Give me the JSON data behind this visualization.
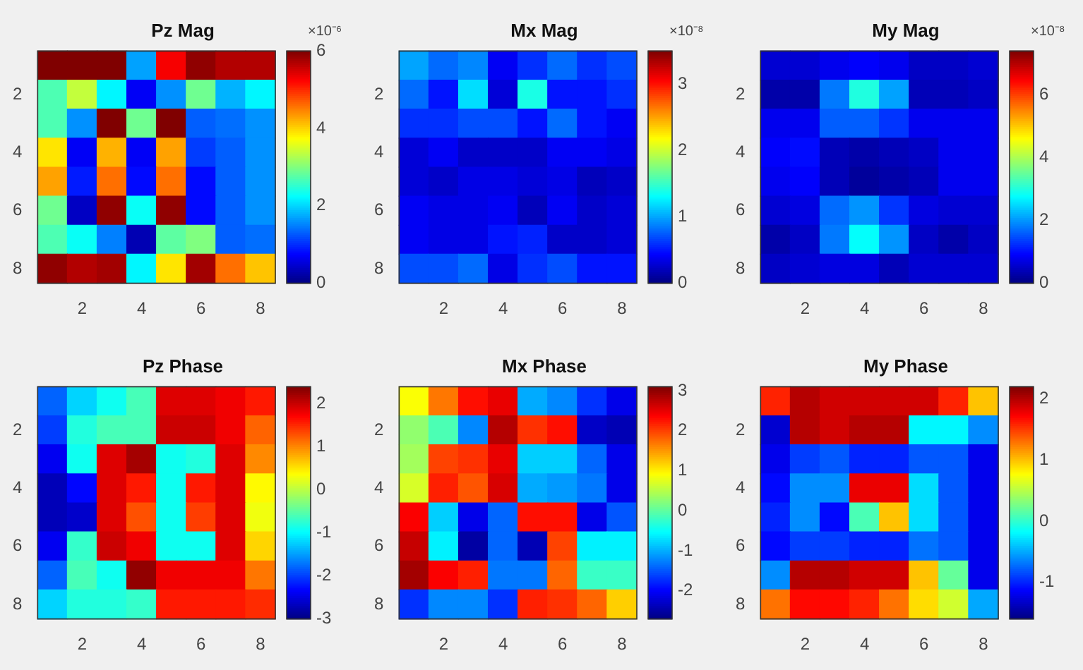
{
  "chart_data": [
    {
      "type": "heatmap",
      "title": "Pz Mag",
      "categories": [
        null,
        "2",
        null,
        "4",
        null,
        "6",
        null,
        "8"
      ],
      "y_categories": [
        null,
        "2",
        null,
        "4",
        null,
        "6",
        null,
        "8"
      ],
      "clim": [
        0,
        6
      ],
      "cticks": [
        0,
        2,
        4,
        6
      ],
      "clabel": "×10⁻⁶",
      "cells": [
        [
          6,
          6,
          6,
          1.7,
          5.3,
          5.9,
          5.7,
          5.7
        ],
        [
          2.7,
          3.4,
          2.2,
          0.7,
          1.6,
          2.9,
          1.8,
          2.2
        ],
        [
          2.7,
          1.6,
          6,
          2.9,
          6,
          1.3,
          1.4,
          1.6
        ],
        [
          3.9,
          0.7,
          4.2,
          0.7,
          4.3,
          1.1,
          1.3,
          1.6
        ],
        [
          4.3,
          0.9,
          4.6,
          0.8,
          4.6,
          0.8,
          1.3,
          1.6
        ],
        [
          2.9,
          0.4,
          5.9,
          2.3,
          5.9,
          0.8,
          1.3,
          1.6
        ],
        [
          2.7,
          2.3,
          1.5,
          0.3,
          2.8,
          3,
          1.3,
          1.4
        ],
        [
          5.9,
          5.7,
          5.8,
          2.2,
          3.9,
          5.8,
          4.6,
          4.1
        ]
      ]
    },
    {
      "type": "heatmap",
      "title": "Mx Mag",
      "categories": [
        null,
        "2",
        null,
        "4",
        null,
        "6",
        null,
        "8"
      ],
      "y_categories": [
        null,
        "2",
        null,
        "4",
        null,
        "6",
        null,
        "8"
      ],
      "clim": [
        0,
        3.5
      ],
      "cticks": [
        0,
        1,
        2,
        3
      ],
      "clabel": "×10⁻⁸",
      "cells": [
        [
          1,
          0.8,
          0.9,
          0.4,
          0.6,
          0.8,
          0.6,
          0.7
        ],
        [
          0.8,
          0.5,
          1.2,
          0.3,
          1.4,
          0.5,
          0.5,
          0.6
        ],
        [
          0.6,
          0.6,
          0.7,
          0.7,
          0.5,
          0.8,
          0.5,
          0.4
        ],
        [
          0.3,
          0.4,
          0.25,
          0.25,
          0.25,
          0.4,
          0.4,
          0.35
        ],
        [
          0.3,
          0.25,
          0.35,
          0.35,
          0.3,
          0.35,
          0.2,
          0.25
        ],
        [
          0.4,
          0.35,
          0.35,
          0.4,
          0.2,
          0.4,
          0.25,
          0.3
        ],
        [
          0.4,
          0.35,
          0.35,
          0.5,
          0.55,
          0.25,
          0.25,
          0.3
        ],
        [
          0.7,
          0.7,
          0.8,
          0.35,
          0.6,
          0.7,
          0.5,
          0.5
        ]
      ]
    },
    {
      "type": "heatmap",
      "title": "My Mag",
      "categories": [
        null,
        "2",
        null,
        "4",
        null,
        "6",
        null,
        "8"
      ],
      "y_categories": [
        null,
        "2",
        null,
        "4",
        null,
        "6",
        null,
        "8"
      ],
      "clim": [
        0,
        7.4
      ],
      "cticks": [
        0,
        2,
        4,
        6
      ],
      "clabel": "×10⁻⁸",
      "cells": [
        [
          0.6,
          0.6,
          0.8,
          0.9,
          0.8,
          0.5,
          0.5,
          0.6
        ],
        [
          0.3,
          0.3,
          1.8,
          3,
          2.1,
          0.4,
          0.4,
          0.5
        ],
        [
          0.8,
          0.8,
          1.6,
          1.6,
          1.3,
          0.8,
          0.8,
          0.8
        ],
        [
          0.9,
          1,
          0.4,
          0.3,
          0.4,
          0.5,
          0.8,
          0.8
        ],
        [
          0.8,
          0.9,
          0.4,
          0.2,
          0.3,
          0.4,
          0.8,
          0.8
        ],
        [
          0.6,
          0.7,
          1.7,
          2,
          1.3,
          0.7,
          0.6,
          0.6
        ],
        [
          0.3,
          0.5,
          1.8,
          2.8,
          2,
          0.5,
          0.3,
          0.5
        ],
        [
          0.5,
          0.6,
          0.7,
          0.7,
          0.4,
          0.6,
          0.6,
          0.6
        ]
      ]
    },
    {
      "type": "heatmap",
      "title": "Pz Phase",
      "categories": [
        null,
        "2",
        null,
        "4",
        null,
        "6",
        null,
        "8"
      ],
      "y_categories": [
        null,
        "2",
        null,
        "4",
        null,
        "6",
        null,
        "8"
      ],
      "clim": [
        -3,
        2.4
      ],
      "cticks": [
        -3,
        -2,
        -1,
        0,
        1,
        2
      ],
      "cells": [
        [
          -1.8,
          -1.2,
          -0.9,
          -0.6,
          1.9,
          1.9,
          1.8,
          1.6
        ],
        [
          -2,
          -0.8,
          -0.6,
          -0.6,
          2,
          2,
          1.8,
          1.2
        ],
        [
          -2.4,
          -0.9,
          1.9,
          2.2,
          -0.9,
          -0.8,
          1.9,
          1
        ],
        [
          -2.7,
          -2.3,
          1.9,
          1.6,
          -0.9,
          1.6,
          1.9,
          0.4
        ],
        [
          -2.7,
          -2.6,
          1.9,
          1.3,
          -0.9,
          1.4,
          1.9,
          0.3
        ],
        [
          -2.4,
          -0.7,
          2,
          1.8,
          -0.9,
          -0.9,
          1.9,
          0.6
        ],
        [
          -1.8,
          -0.6,
          -0.9,
          2.3,
          1.8,
          1.8,
          1.8,
          1.1
        ],
        [
          -1.2,
          -0.8,
          -0.8,
          -0.7,
          1.6,
          1.6,
          1.6,
          1.5
        ]
      ]
    },
    {
      "type": "heatmap",
      "title": "Mx Phase",
      "categories": [
        null,
        "2",
        null,
        "4",
        null,
        "6",
        null,
        "8"
      ],
      "y_categories": [
        null,
        "2",
        null,
        "4",
        null,
        "6",
        null,
        "8"
      ],
      "clim": [
        -2.7,
        3.1
      ],
      "cticks": [
        -2,
        -1,
        0,
        1,
        2,
        3
      ],
      "cells": [
        [
          0.9,
          1.7,
          2.3,
          2.5,
          -1,
          -1.2,
          -1.7,
          -2.1
        ],
        [
          0.3,
          -0.1,
          -1.2,
          2.8,
          2.1,
          2.3,
          -2.3,
          -2.4
        ],
        [
          0.4,
          2,
          2.1,
          2.5,
          -0.8,
          -0.8,
          -1.4,
          -2.1
        ],
        [
          0.7,
          2.2,
          1.9,
          2.6,
          -1,
          -1.1,
          -1.3,
          -2.1
        ],
        [
          2.4,
          -0.8,
          -2.1,
          -1.4,
          2.3,
          2.3,
          -2.1,
          -1.5
        ],
        [
          2.7,
          -0.6,
          -2.5,
          -1.4,
          -2.4,
          2,
          -0.6,
          -0.6
        ],
        [
          2.9,
          2.4,
          2.2,
          -1.3,
          -1.3,
          1.8,
          -0.2,
          -0.2
        ],
        [
          -1.7,
          -1.2,
          -1.2,
          -1.7,
          2.2,
          2.1,
          1.8,
          1.2
        ]
      ]
    },
    {
      "type": "heatmap",
      "title": "My Phase",
      "categories": [
        null,
        "2",
        null,
        "4",
        null,
        "6",
        null,
        "8"
      ],
      "y_categories": [
        null,
        "2",
        null,
        "4",
        null,
        "6",
        null,
        "8"
      ],
      "clim": [
        -1.6,
        2.2
      ],
      "cticks": [
        -1,
        0,
        1,
        2
      ],
      "cells": [
        [
          1.6,
          2,
          1.9,
          1.9,
          1.9,
          1.9,
          1.6,
          1
        ],
        [
          -1.3,
          2,
          1.9,
          2,
          2,
          -0.2,
          -0.2,
          -0.6
        ],
        [
          -1.2,
          -0.9,
          -0.8,
          -1,
          -1,
          -0.8,
          -0.8,
          -1.2
        ],
        [
          -1.1,
          -0.6,
          -0.6,
          1.8,
          1.8,
          -0.3,
          -0.8,
          -1.2
        ],
        [
          -1,
          -0.6,
          -1.1,
          0.1,
          1,
          -0.3,
          -0.8,
          -1.2
        ],
        [
          -1.1,
          -0.9,
          -0.9,
          -1,
          -1,
          -0.7,
          -0.8,
          -1.2
        ],
        [
          -0.6,
          2,
          2,
          1.9,
          1.9,
          1,
          0.2,
          -1.2
        ],
        [
          1.3,
          1.7,
          1.7,
          1.6,
          1.3,
          0.9,
          0.6,
          -0.5
        ]
      ]
    }
  ]
}
